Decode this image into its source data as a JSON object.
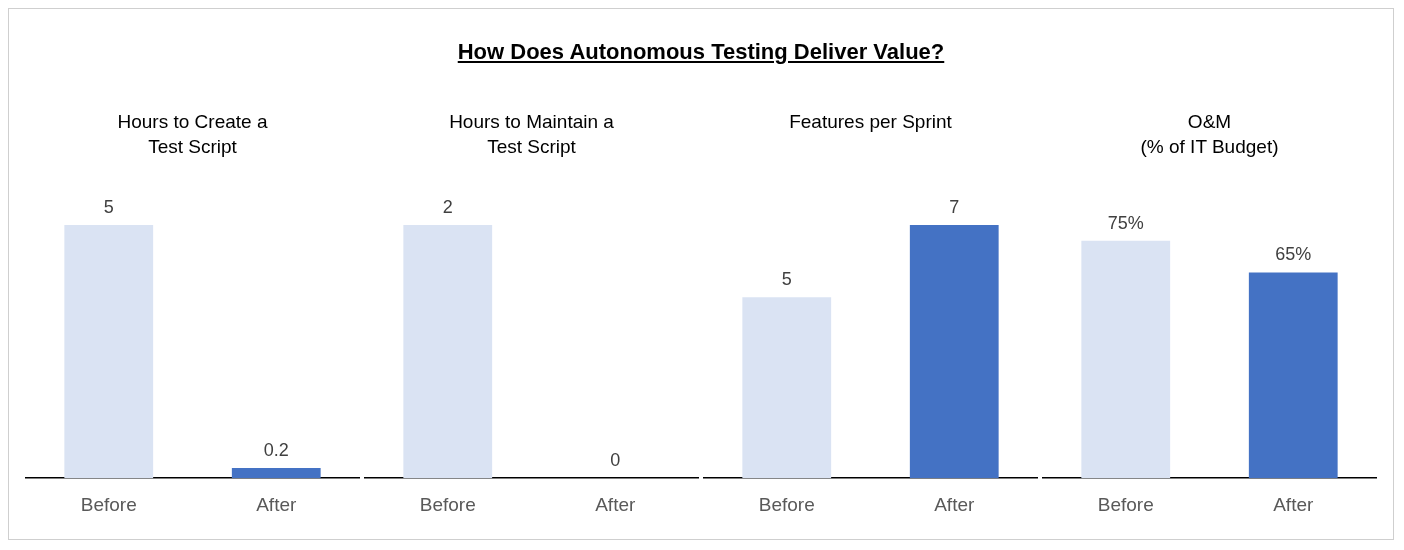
{
  "chart_data": [
    {
      "type": "other",
      "title": "How Does Autonomous Testing Deliver Value?"
    },
    {
      "type": "bar",
      "title": "Hours to Create a\nTest Script",
      "categories": [
        "Before",
        "After"
      ],
      "values": [
        5,
        0.2
      ],
      "colors": [
        "#dae3f3",
        "#4472c4"
      ],
      "data_labels": true,
      "tick_labels": "x"
    },
    {
      "type": "bar",
      "title": "Hours to Maintain a\nTest Script",
      "categories": [
        "Before",
        "After"
      ],
      "values": [
        2,
        0
      ],
      "colors": [
        "#dae3f3",
        "#4472c4"
      ],
      "data_labels": true,
      "tick_labels": "x"
    },
    {
      "type": "bar",
      "title": "Features per Sprint",
      "categories": [
        "Before",
        "After"
      ],
      "values": [
        5,
        7
      ],
      "colors": [
        "#dae3f3",
        "#4472c4"
      ],
      "data_labels": true,
      "tick_labels": "x"
    },
    {
      "type": "bar",
      "title": "O&M\n(% of IT Budget)",
      "categories": [
        "Before",
        "After"
      ],
      "values": [
        75,
        65
      ],
      "value_labels": [
        "75%",
        "65%"
      ],
      "colors": [
        "#dae3f3",
        "#4472c4"
      ],
      "tick_labels": "x"
    }
  ]
}
